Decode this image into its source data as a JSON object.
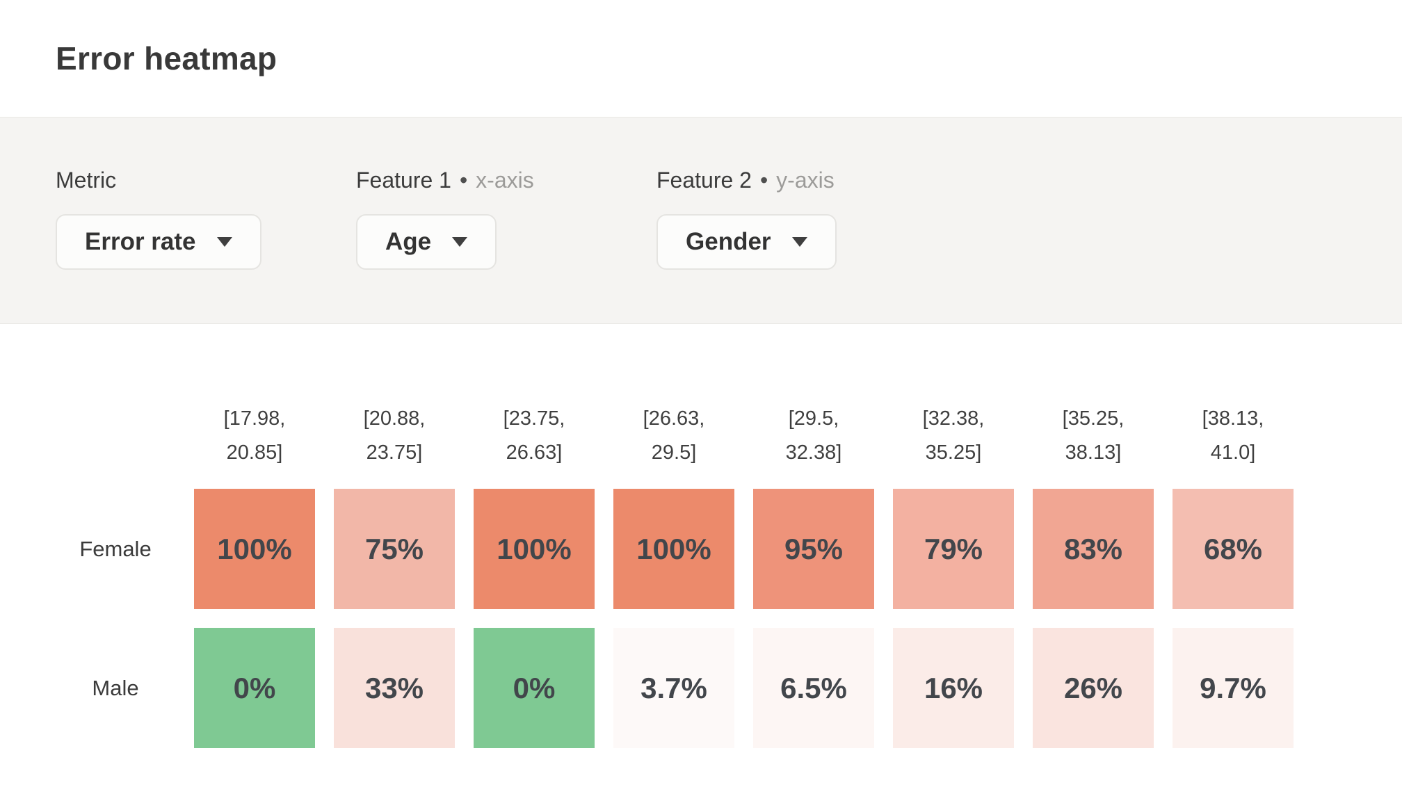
{
  "page": {
    "title": "Error heatmap"
  },
  "controls": [
    {
      "label": "Metric",
      "separator": "",
      "axis_hint": "",
      "value": "Error rate"
    },
    {
      "label": "Feature 1",
      "separator": "•",
      "axis_hint": "x-axis",
      "value": "Age"
    },
    {
      "label": "Feature 2",
      "separator": "•",
      "axis_hint": "y-axis",
      "value": "Gender"
    }
  ],
  "chart_data": {
    "type": "heatmap",
    "title": "Error heatmap",
    "metric": "Error rate",
    "x_feature": "Age",
    "y_feature": "Gender",
    "x_categories": [
      "[17.98, 20.85]",
      "[20.88, 23.75]",
      "[23.75, 26.63]",
      "[26.63, 29.5]",
      "[29.5, 32.38]",
      "[32.38, 35.25]",
      "[35.25, 38.13]",
      "[38.13, 41.0]"
    ],
    "y_categories": [
      "Female",
      "Male"
    ],
    "series": [
      {
        "name": "Female",
        "values": [
          100,
          75,
          100,
          100,
          95,
          79,
          83,
          68
        ],
        "display": [
          "100%",
          "75%",
          "100%",
          "100%",
          "95%",
          "79%",
          "83%",
          "68%"
        ],
        "colors": [
          "#ec8a6b",
          "#f2b7a8",
          "#ec8a6b",
          "#ec8a6b",
          "#ee937a",
          "#f3b1a1",
          "#f1a693",
          "#f4beb1"
        ]
      },
      {
        "name": "Male",
        "values": [
          0,
          33,
          0,
          3.7,
          6.5,
          16,
          26,
          9.7
        ],
        "display": [
          "0%",
          "33%",
          "0%",
          "3.7%",
          "6.5%",
          "16%",
          "26%",
          "9.7%"
        ],
        "colors": [
          "#7fc993",
          "#f9e1db",
          "#7fc993",
          "#fdf9f8",
          "#fdf6f4",
          "#fbece8",
          "#fae4df",
          "#fcf2ef"
        ]
      }
    ],
    "color_scale": {
      "zero_color": "#7fc993",
      "low_color": "#fefbfa",
      "high_color": "#ec8a6b"
    }
  }
}
